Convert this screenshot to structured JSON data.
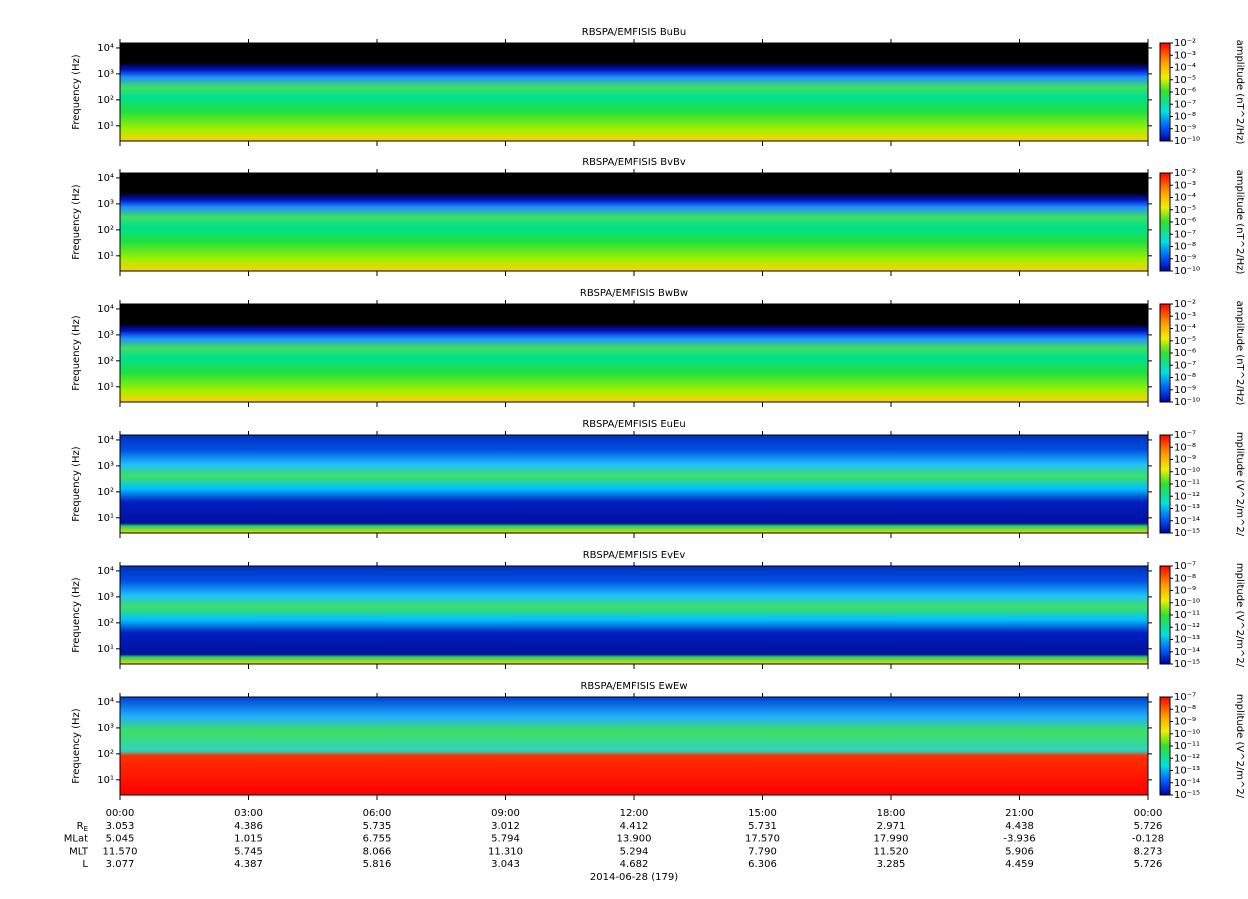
{
  "chart_data": [
    {
      "type": "spectrogram",
      "title": "RBSPA/EMFISIS  BuBu",
      "ylabel": "Frequency (Hz)",
      "log_y": true,
      "ylim": [
        2.6,
        15500
      ],
      "yticks": [
        {
          "value": 10,
          "label": "10¹"
        },
        {
          "value": 100,
          "label": "10²"
        },
        {
          "value": 1000,
          "label": "10³"
        },
        {
          "value": 10000,
          "label": "10⁴"
        }
      ],
      "colorbar_label": "amplitude (nT^2/Hz)",
      "clim": [
        1e-10,
        0.01
      ],
      "cticks": [
        {
          "value": 0.01,
          "label": "10⁻²"
        },
        {
          "value": 0.001,
          "label": "10⁻³"
        },
        {
          "value": 0.0001,
          "label": "10⁻⁴"
        },
        {
          "value": 1e-05,
          "label": "10⁻⁵"
        },
        {
          "value": 1e-06,
          "label": "10⁻⁶"
        },
        {
          "value": 1e-07,
          "label": "10⁻⁷"
        },
        {
          "value": 1e-08,
          "label": "10⁻⁸"
        },
        {
          "value": 1e-09,
          "label": "10⁻⁹"
        },
        {
          "value": 1e-10,
          "label": "10⁻¹⁰"
        }
      ]
    },
    {
      "type": "spectrogram",
      "title": "RBSPA/EMFISIS  BvBv",
      "ylabel": "Frequency (Hz)",
      "log_y": true,
      "ylim": [
        2.6,
        15500
      ],
      "yticks": [
        {
          "value": 10,
          "label": "10¹"
        },
        {
          "value": 100,
          "label": "10²"
        },
        {
          "value": 1000,
          "label": "10³"
        },
        {
          "value": 10000,
          "label": "10⁴"
        }
      ],
      "colorbar_label": "amplitude (nT^2/Hz)",
      "clim": [
        1e-10,
        0.01
      ],
      "cticks": [
        {
          "value": 0.01,
          "label": "10⁻²"
        },
        {
          "value": 0.001,
          "label": "10⁻³"
        },
        {
          "value": 0.0001,
          "label": "10⁻⁴"
        },
        {
          "value": 1e-05,
          "label": "10⁻⁵"
        },
        {
          "value": 1e-06,
          "label": "10⁻⁶"
        },
        {
          "value": 1e-07,
          "label": "10⁻⁷"
        },
        {
          "value": 1e-08,
          "label": "10⁻⁸"
        },
        {
          "value": 1e-09,
          "label": "10⁻⁹"
        },
        {
          "value": 1e-10,
          "label": "10⁻¹⁰"
        }
      ]
    },
    {
      "type": "spectrogram",
      "title": "RBSPA/EMFISIS  BwBw",
      "ylabel": "Frequency (Hz)",
      "log_y": true,
      "ylim": [
        2.6,
        15500
      ],
      "yticks": [
        {
          "value": 10,
          "label": "10¹"
        },
        {
          "value": 100,
          "label": "10²"
        },
        {
          "value": 1000,
          "label": "10³"
        },
        {
          "value": 10000,
          "label": "10⁴"
        }
      ],
      "colorbar_label": "amplitude (nT^2/Hz)",
      "clim": [
        1e-10,
        0.01
      ],
      "cticks": [
        {
          "value": 0.01,
          "label": "10⁻²"
        },
        {
          "value": 0.001,
          "label": "10⁻³"
        },
        {
          "value": 0.0001,
          "label": "10⁻⁴"
        },
        {
          "value": 1e-05,
          "label": "10⁻⁵"
        },
        {
          "value": 1e-06,
          "label": "10⁻⁶"
        },
        {
          "value": 1e-07,
          "label": "10⁻⁷"
        },
        {
          "value": 1e-08,
          "label": "10⁻⁸"
        },
        {
          "value": 1e-09,
          "label": "10⁻⁹"
        },
        {
          "value": 1e-10,
          "label": "10⁻¹⁰"
        }
      ]
    },
    {
      "type": "spectrogram",
      "title": "RBSPA/EMFISIS  EuEu",
      "ylabel": "Frequency (Hz)",
      "log_y": true,
      "ylim": [
        2.6,
        15500
      ],
      "yticks": [
        {
          "value": 10,
          "label": "10¹"
        },
        {
          "value": 100,
          "label": "10²"
        },
        {
          "value": 1000,
          "label": "10³"
        },
        {
          "value": 10000,
          "label": "10⁴"
        }
      ],
      "colorbar_label": "mplitude (V^2/m^2/",
      "clim": [
        1e-15,
        1e-07
      ],
      "cticks": [
        {
          "value": 1e-07,
          "label": "10⁻⁷"
        },
        {
          "value": 1e-08,
          "label": "10⁻⁸"
        },
        {
          "value": 1e-09,
          "label": "10⁻⁹"
        },
        {
          "value": 1e-10,
          "label": "10⁻¹⁰"
        },
        {
          "value": 1e-11,
          "label": "10⁻¹¹"
        },
        {
          "value": 1e-12,
          "label": "10⁻¹²"
        },
        {
          "value": 1e-13,
          "label": "10⁻¹³"
        },
        {
          "value": 1e-14,
          "label": "10⁻¹⁴"
        },
        {
          "value": 1e-15,
          "label": "10⁻¹⁵"
        }
      ]
    },
    {
      "type": "spectrogram",
      "title": "RBSPA/EMFISIS  EvEv",
      "ylabel": "Frequency (Hz)",
      "log_y": true,
      "ylim": [
        2.6,
        15500
      ],
      "yticks": [
        {
          "value": 10,
          "label": "10¹"
        },
        {
          "value": 100,
          "label": "10²"
        },
        {
          "value": 1000,
          "label": "10³"
        },
        {
          "value": 10000,
          "label": "10⁴"
        }
      ],
      "colorbar_label": "mplitude (V^2/m^2/",
      "clim": [
        1e-15,
        1e-07
      ],
      "cticks": [
        {
          "value": 1e-07,
          "label": "10⁻⁷"
        },
        {
          "value": 1e-08,
          "label": "10⁻⁸"
        },
        {
          "value": 1e-09,
          "label": "10⁻⁹"
        },
        {
          "value": 1e-10,
          "label": "10⁻¹⁰"
        },
        {
          "value": 1e-11,
          "label": "10⁻¹¹"
        },
        {
          "value": 1e-12,
          "label": "10⁻¹²"
        },
        {
          "value": 1e-13,
          "label": "10⁻¹³"
        },
        {
          "value": 1e-14,
          "label": "10⁻¹⁴"
        },
        {
          "value": 1e-15,
          "label": "10⁻¹⁵"
        }
      ]
    },
    {
      "type": "spectrogram",
      "title": "RBSPA/EMFISIS  EwEw",
      "ylabel": "Frequency (Hz)",
      "log_y": true,
      "ylim": [
        2.6,
        15500
      ],
      "yticks": [
        {
          "value": 10,
          "label": "10¹"
        },
        {
          "value": 100,
          "label": "10²"
        },
        {
          "value": 1000,
          "label": "10³"
        },
        {
          "value": 10000,
          "label": "10⁴"
        }
      ],
      "colorbar_label": "mplitude (V^2/m^2/",
      "clim": [
        1e-15,
        1e-07
      ],
      "cticks": [
        {
          "value": 1e-07,
          "label": "10⁻⁷"
        },
        {
          "value": 1e-08,
          "label": "10⁻⁸"
        },
        {
          "value": 1e-09,
          "label": "10⁻⁹"
        },
        {
          "value": 1e-10,
          "label": "10⁻¹⁰"
        },
        {
          "value": 1e-11,
          "label": "10⁻¹¹"
        },
        {
          "value": 1e-12,
          "label": "10⁻¹²"
        },
        {
          "value": 1e-13,
          "label": "10⁻¹³"
        },
        {
          "value": 1e-14,
          "label": "10⁻¹⁴"
        },
        {
          "value": 1e-15,
          "label": "10⁻¹⁵"
        }
      ]
    },
    {
      "type": "time-axis",
      "xlim": [
        0,
        24
      ],
      "xticks": [
        {
          "value": 0,
          "label": "00:00"
        },
        {
          "value": 3,
          "label": "03:00"
        },
        {
          "value": 6,
          "label": "06:00"
        },
        {
          "value": 9,
          "label": "09:00"
        },
        {
          "value": 12,
          "label": "12:00"
        },
        {
          "value": 15,
          "label": "15:00"
        },
        {
          "value": 18,
          "label": "18:00"
        },
        {
          "value": 21,
          "label": "21:00"
        },
        {
          "value": 24,
          "label": "00:00"
        }
      ],
      "xlabel": "2014-06-28 (179)"
    }
  ],
  "ephemeris": {
    "rows": [
      {
        "label": "R",
        "sub": "E",
        "values": [
          "3.053",
          "4.386",
          "5.735",
          "3.012",
          "4.412",
          "5.731",
          "2.971",
          "4.438",
          "5.726"
        ]
      },
      {
        "label": "MLat",
        "values": [
          "5.045",
          "1.015",
          "6.755",
          "5.794",
          "13.900",
          "17.570",
          "17.990",
          "-3.936",
          "-0.128"
        ]
      },
      {
        "label": "MLT",
        "values": [
          "11.570",
          "5.745",
          "8.066",
          "11.310",
          "5.294",
          "7.790",
          "11.520",
          "5.906",
          "8.273"
        ]
      },
      {
        "label": "L",
        "values": [
          "3.077",
          "4.387",
          "5.816",
          "3.043",
          "4.682",
          "6.306",
          "3.285",
          "4.459",
          "5.726"
        ]
      }
    ]
  }
}
